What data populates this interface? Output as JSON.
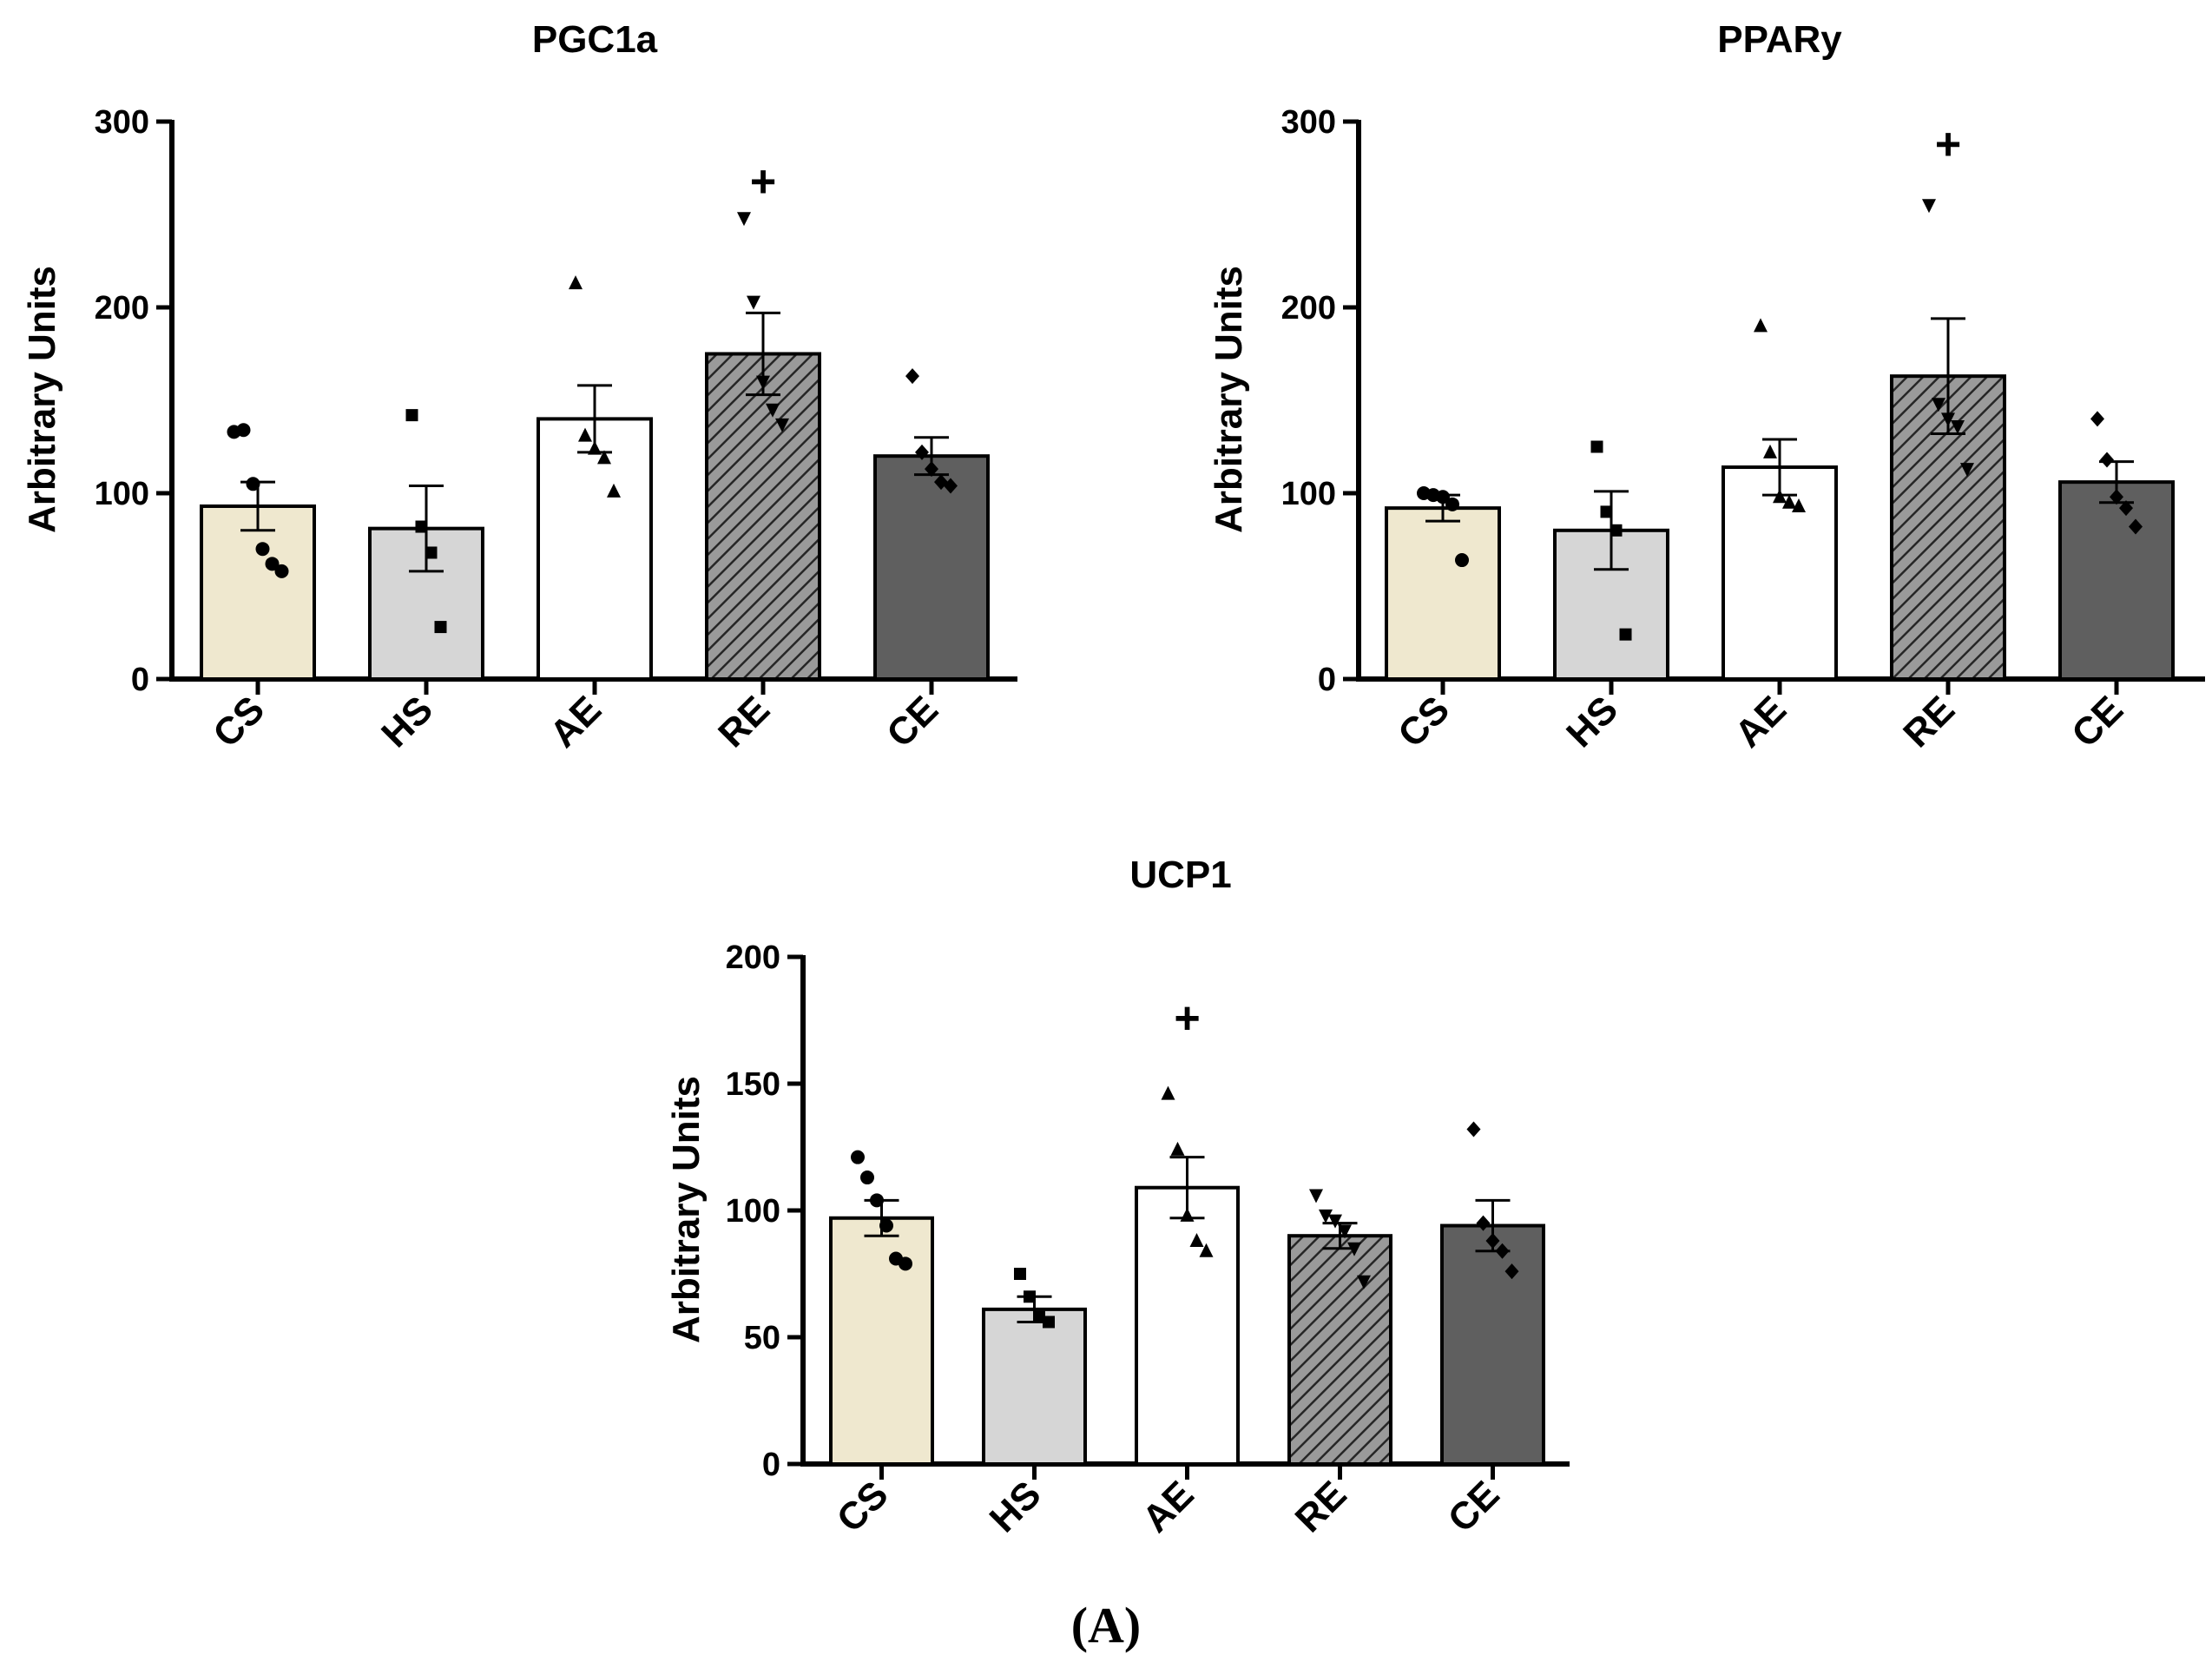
{
  "figure_label": "(A)",
  "groups": [
    "CS",
    "HS",
    "AE",
    "RE",
    "CE"
  ],
  "colors": {
    "CS": "#efe8cf",
    "HS": "#d6d6d6",
    "AE": "#ffffff",
    "RE": "#9a9a9a",
    "CE": "#5f5f5f",
    "axis": "#000000"
  },
  "chart_data": [
    {
      "type": "bar",
      "title": "PGC1a",
      "ylabel": "Arbitrary Units",
      "xlabel": "",
      "ylim": [
        0,
        300
      ],
      "yticks": [
        "0",
        "100",
        "200",
        "300"
      ],
      "categories": [
        "CS",
        "HS",
        "AE",
        "RE",
        "CE"
      ],
      "values": [
        93,
        81,
        140,
        175,
        120
      ],
      "sem": [
        13,
        23,
        18,
        22,
        10
      ],
      "points": [
        [
          133,
          134,
          105,
          70,
          62,
          58
        ],
        [
          142,
          82,
          68,
          28
        ],
        [
          213,
          131,
          124,
          119,
          101
        ],
        [
          248,
          203,
          160,
          145,
          137
        ],
        [
          163,
          122,
          113,
          106,
          104
        ]
      ],
      "annotation": {
        "category": "RE",
        "text": "+",
        "y": 268
      }
    },
    {
      "type": "bar",
      "title": "PPARy",
      "ylabel": "Arbitrary Units",
      "xlabel": "",
      "ylim": [
        0,
        300
      ],
      "yticks": [
        "0",
        "100",
        "200",
        "300"
      ],
      "categories": [
        "CS",
        "HS",
        "AE",
        "RE",
        "CE"
      ],
      "values": [
        92,
        80,
        114,
        163,
        106
      ],
      "sem": [
        7,
        21,
        15,
        31,
        11
      ],
      "points": [
        [
          100,
          99,
          98,
          94,
          64
        ],
        [
          125,
          90,
          80,
          24
        ],
        [
          190,
          122,
          98,
          95,
          93
        ],
        [
          255,
          148,
          140,
          136,
          113
        ],
        [
          140,
          118,
          98,
          92,
          82
        ]
      ],
      "annotation": {
        "category": "RE",
        "text": "+",
        "y": 288
      }
    },
    {
      "type": "bar",
      "title": "UCP1",
      "ylabel": "Arbitrary Units",
      "xlabel": "",
      "ylim": [
        0,
        200
      ],
      "yticks": [
        "0",
        "50",
        "100",
        "150",
        "200"
      ],
      "categories": [
        "CS",
        "HS",
        "AE",
        "RE",
        "CE"
      ],
      "values": [
        97,
        61,
        109,
        90,
        94
      ],
      "sem": [
        7,
        5,
        12,
        5,
        10
      ],
      "points": [
        [
          121,
          113,
          104,
          94,
          81,
          79
        ],
        [
          75,
          66,
          58,
          56
        ],
        [
          146,
          124,
          98,
          88,
          84
        ],
        [
          106,
          98,
          96,
          92,
          85,
          72
        ],
        [
          132,
          95,
          88,
          84,
          76
        ]
      ],
      "annotation": {
        "category": "AE",
        "text": "+",
        "y": 176
      }
    }
  ]
}
